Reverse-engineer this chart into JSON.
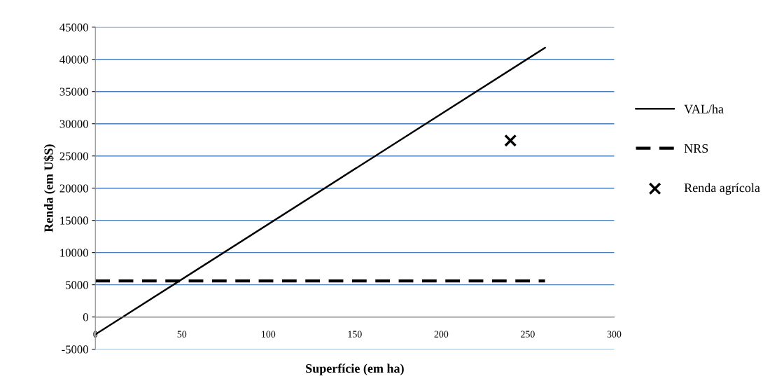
{
  "chart_data": {
    "type": "line",
    "xlabel": "Superfície (em ha)",
    "ylabel": "Renda (em U$S)",
    "xlim": [
      0,
      300
    ],
    "xticks": [
      0,
      50,
      100,
      150,
      200,
      250,
      300
    ],
    "ylim": [
      -5000,
      45000
    ],
    "yticks": [
      -5000,
      0,
      5000,
      10000,
      15000,
      20000,
      25000,
      30000,
      35000,
      40000,
      45000
    ],
    "grid": "y",
    "legend": "right",
    "series": [
      {
        "name": "VAL/ha",
        "color": "#000000",
        "x": [
          0,
          260
        ],
        "values": [
          -2700,
          41800
        ],
        "line_style": "solid",
        "marker": "none"
      },
      {
        "name": "NRS",
        "color": "#000000",
        "x": [
          0,
          260
        ],
        "values": [
          5600,
          5600
        ],
        "line_style": "dashed",
        "marker": "none"
      },
      {
        "name": "Renda agrícola",
        "type": "scatter",
        "color": "#000000",
        "x": [
          240
        ],
        "values": [
          27400
        ],
        "marker": "cross"
      }
    ]
  }
}
